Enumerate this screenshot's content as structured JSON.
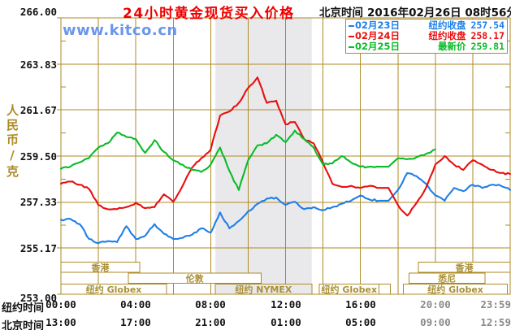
{
  "header": {
    "title": "24小时黄金现货买入价格",
    "timezone_label": "北京时间",
    "datetime": "2016年02月26日 08时56分"
  },
  "watermark": "www.kitco.cn",
  "y_axis": {
    "unit_label": "人民币/克",
    "ticks": [
      "266.00",
      "263.83",
      "261.67",
      "259.50",
      "257.33",
      "255.17",
      "253.00"
    ]
  },
  "x_axis": {
    "ny_label": "纽约时间",
    "bj_label": "北京时间",
    "ny_ticks": [
      "00:00",
      "04:00",
      "08:00",
      "12:00",
      "16:00",
      "20:00",
      "23:59"
    ],
    "bj_ticks": [
      "13:00",
      "17:00",
      "21:00",
      "01:00",
      "05:00",
      "09:00",
      "12:59"
    ],
    "grayed_tick_indices": [
      5,
      6
    ]
  },
  "sessions": {
    "rows": [
      {
        "boxes": [
          {
            "from": 0,
            "to": 4.2,
            "label": "香港"
          },
          {
            "from": 19.1,
            "to": 24,
            "label": "香港"
          }
        ]
      },
      {
        "boxes": [
          {
            "from": 3.6,
            "to": 10.7,
            "label": "伦敦"
          },
          {
            "from": 18.6,
            "to": 22.65,
            "label": "悉尼"
          }
        ]
      },
      {
        "boxes": [
          {
            "from": 0,
            "to": 5.65,
            "label": "纽约 Globex"
          },
          {
            "from": 8.25,
            "to": 13.4,
            "label": "纽约 NYMEX",
            "fill": "band"
          },
          {
            "from": 13.8,
            "to": 17.0,
            "label": "纽约 Globex"
          },
          {
            "from": 17.0,
            "to": 17.6,
            "label": ""
          },
          {
            "from": 18.3,
            "to": 23.85,
            "label": "纽约 Globex"
          }
        ]
      }
    ]
  },
  "colors": {
    "grid": "#ad8b25",
    "band": "#e9e9ec",
    "title": "#ee0000",
    "watermark": "#6b96ea",
    "session_label": "#a89035",
    "gray_label": "#8a8a8a"
  },
  "chart_data": {
    "type": "line",
    "title": "24小时黄金现货买入价格",
    "ylabel": "人民币/克",
    "xlabel": "纽约时间 00:00-23:59 (北京时间 13:00-12:59)",
    "x_start_hour": 0,
    "x_step_hours": 0.5,
    "xlim_hours": [
      0,
      24
    ],
    "ylim": [
      253.0,
      266.0
    ],
    "y_ticks": [
      266.0,
      263.83,
      261.67,
      259.5,
      257.33,
      255.17,
      253.0
    ],
    "grid": true,
    "legend_position": "top-right",
    "highlight_band_hours": [
      8.25,
      13.4
    ],
    "flat_segment_hours": [
      17,
      18
    ],
    "series": [
      {
        "name": "02月23日",
        "close_label": "纽约收盘",
        "close": "257.54",
        "color": "#1f7fe8",
        "values": [
          256.5,
          256.55,
          256.3,
          255.6,
          255.4,
          255.5,
          255.45,
          256.2,
          255.6,
          255.75,
          256.3,
          255.85,
          255.6,
          255.65,
          255.8,
          256.1,
          255.9,
          256.85,
          256.1,
          256.45,
          256.9,
          257.25,
          257.5,
          257.55,
          257.2,
          257.35,
          257.0,
          257.1,
          256.95,
          257.1,
          257.25,
          257.4,
          257.65,
          257.45,
          257.4,
          257.4,
          257.9,
          258.7,
          258.55,
          258.2,
          257.65,
          257.4,
          258.0,
          257.85,
          258.15,
          258.0,
          258.15,
          258.1,
          257.9
        ]
      },
      {
        "name": "02月24日",
        "close_label": "纽约收盘",
        "close": "258.17",
        "color": "#e80f0f",
        "values": [
          258.2,
          258.3,
          258.15,
          257.95,
          257.2,
          257.0,
          257.0,
          257.1,
          257.3,
          257.05,
          257.1,
          257.7,
          257.35,
          258.1,
          258.95,
          259.4,
          259.8,
          261.4,
          261.6,
          262.0,
          262.7,
          263.2,
          262.0,
          262.1,
          261.0,
          261.1,
          260.3,
          260.1,
          259.2,
          258.2,
          258.05,
          258.1,
          258.0,
          258.1,
          258.0,
          258.0,
          257.2,
          256.7,
          257.3,
          258.0,
          259.1,
          259.5,
          259.1,
          258.85,
          259.3,
          259.1,
          258.85,
          258.7,
          258.65
        ]
      },
      {
        "name": "02月25日",
        "close_label": "最新价",
        "close": "259.81",
        "color": "#0abb28",
        "values": [
          258.9,
          259.0,
          259.2,
          259.4,
          259.9,
          260.1,
          260.6,
          260.4,
          260.3,
          259.65,
          260.25,
          259.7,
          259.3,
          259.1,
          258.85,
          258.75,
          259.1,
          259.9,
          258.8,
          257.9,
          259.3,
          260.0,
          260.1,
          260.5,
          260.15,
          260.7,
          260.3,
          259.9,
          259.1,
          259.15,
          259.5,
          259.2,
          259.0,
          259.0,
          259.0,
          259.0,
          259.4,
          259.35,
          259.45,
          259.6,
          259.81
        ]
      }
    ]
  }
}
